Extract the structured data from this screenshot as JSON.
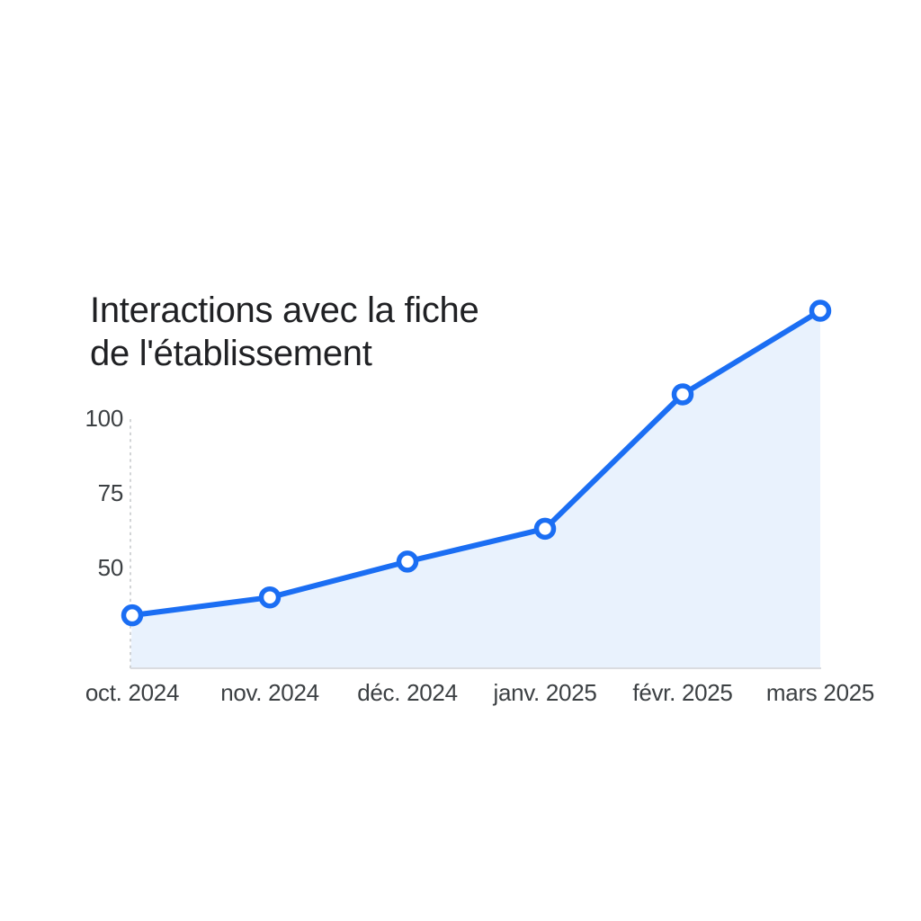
{
  "chart": {
    "title_line1": "Interactions avec la fiche",
    "title_line2": "de l'établissement"
  },
  "chart_data": {
    "type": "area",
    "title": "Interactions avec la fiche de l'établissement",
    "categories": [
      "oct. 2024",
      "nov. 2024",
      "déc. 2024",
      "janv. 2025",
      "févr. 2025",
      "mars 2025"
    ],
    "values": [
      34,
      40,
      52,
      63,
      108,
      136
    ],
    "xlabel": "",
    "ylabel": "",
    "yticks": [
      50,
      75,
      100
    ],
    "ylim": [
      16,
      140
    ],
    "grid": "off",
    "legend": "none",
    "axis_style": "dashed vertical y-axis on left, solid baseline at bottom",
    "colors": {
      "line": "#1b6ef3",
      "marker_fill": "#ffffff",
      "area_fill": "#e9f2fd",
      "baseline": "#dadce0",
      "dashed_axis": "#c6c9cc",
      "title_text": "#202124",
      "tick_text": "#3c4043"
    }
  }
}
